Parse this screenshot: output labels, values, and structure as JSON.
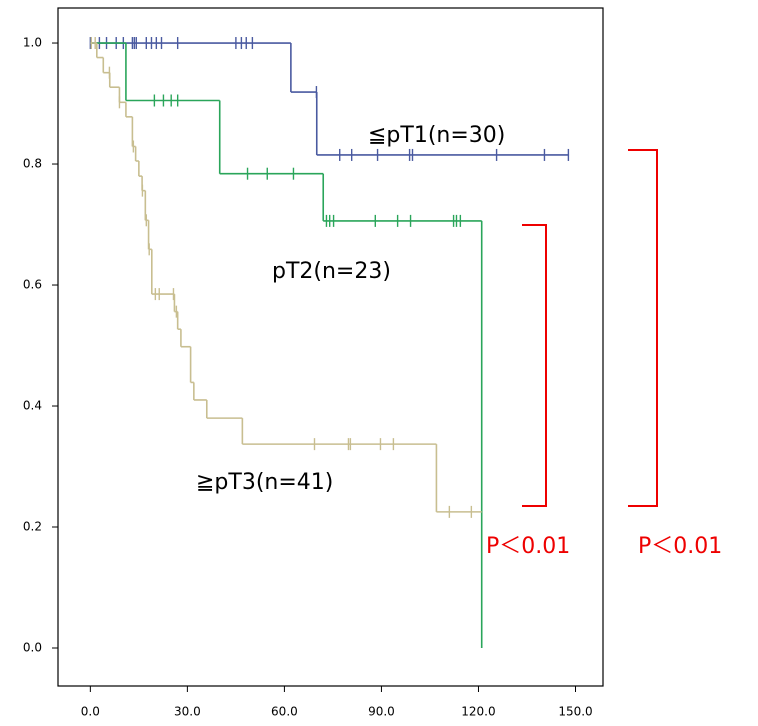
{
  "chart_data": {
    "type": "step",
    "xlim": [
      -10,
      158.5
    ],
    "ylim": [
      -0.0628,
      1.0579
    ],
    "xticks": [
      {
        "value": 0,
        "label": "0.0"
      },
      {
        "value": 30,
        "label": "30.0"
      },
      {
        "value": 60,
        "label": "60.0"
      },
      {
        "value": 90,
        "label": "90.0"
      },
      {
        "value": 120,
        "label": "120.0"
      },
      {
        "value": 150,
        "label": "150.0"
      }
    ],
    "yticks": [
      {
        "value": 0,
        "label": "0.0"
      },
      {
        "value": 0.2,
        "label": "0.2"
      },
      {
        "value": 0.4,
        "label": "0.4"
      },
      {
        "value": 0.6,
        "label": "0.6"
      },
      {
        "value": 0.8,
        "label": "0.8"
      },
      {
        "value": 1.0,
        "label": "1.0"
      }
    ],
    "series": [
      {
        "color": "#4a5aa0",
        "x": [
          0,
          62,
          70,
          148
        ],
        "values": [
          1.0,
          0.919,
          0.815,
          0.815
        ],
        "censored": [
          0,
          2.8,
          5,
          8,
          10.2,
          13,
          13.6,
          14.2,
          17.3,
          18.9,
          20.4,
          22,
          27,
          45,
          46.7,
          48.2,
          50.1,
          69.9,
          77.1,
          80.8,
          88.8,
          98.7,
          99.6,
          125.6,
          140.4,
          147.8
        ]
      },
      {
        "color": "#2aa55a",
        "x": [
          0,
          11,
          40,
          72,
          121,
          121
        ],
        "values": [
          1.0,
          0.905,
          0.784,
          0.706,
          0.706,
          0
        ],
        "censored": [
          19.8,
          22.6,
          25,
          27,
          48.6,
          54.7,
          62.8,
          73,
          74,
          75.2,
          88.1,
          95,
          99,
          112.3,
          113.2,
          114.4
        ]
      },
      {
        "color": "#c8be90",
        "x": [
          0,
          2,
          4,
          6,
          9,
          11,
          13,
          14,
          15,
          16,
          17,
          18,
          19,
          26,
          27,
          28,
          31,
          32,
          36,
          47,
          107,
          121
        ],
        "values": [
          1.0,
          0.976,
          0.951,
          0.927,
          0.902,
          0.878,
          0.829,
          0.805,
          0.78,
          0.756,
          0.707,
          0.659,
          0.585,
          0.556,
          0.527,
          0.498,
          0.439,
          0.41,
          0.38,
          0.337,
          0.225,
          0.225
        ],
        "censored": [
          0.3,
          1.5,
          5.9,
          9,
          13.3,
          16.1,
          17.3,
          18.2,
          20.1,
          21.3,
          25.7,
          26.6,
          69.3,
          79.8,
          80.4,
          89.7,
          93.7,
          111,
          117.8
        ]
      }
    ],
    "annotations": [
      "≦pT1(n=30)",
      "pT2(n=23)",
      "≧pT3(n=41)",
      "P＜0.01",
      "P＜0.01"
    ]
  }
}
